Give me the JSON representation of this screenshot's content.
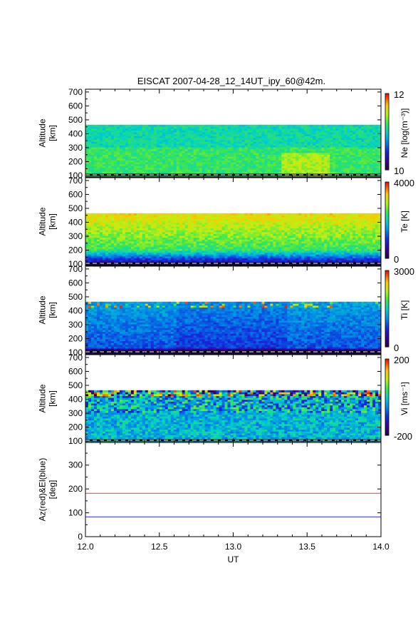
{
  "title": "EISCAT 2007-04-28_12_14UT_ipy_60@42m.",
  "xlabel": "UT",
  "x_ticks": [
    "12.0",
    "12.5",
    "13.0",
    "13.5",
    "14.0"
  ],
  "colors": {
    "azimuth_line": "#e8402a",
    "elevation_line": "#2a2ae0"
  },
  "chart_data": [
    {
      "type": "heatmap",
      "name": "ne-panel",
      "ylabel": "Altitude [km]",
      "y_ticks": [
        "100",
        "200",
        "300",
        "400",
        "500",
        "600",
        "700"
      ],
      "ylim": [
        90,
        720
      ],
      "xlim": [
        12.0,
        14.0
      ],
      "data_top_altitude": 465,
      "colorbar_label": "Ne [log(m⁻³)]",
      "colorbar_ticks": [
        "12",
        "10"
      ],
      "clim": [
        10,
        12
      ]
    },
    {
      "type": "heatmap",
      "name": "te-panel",
      "ylabel": "Altitude [km]",
      "y_ticks": [
        "100",
        "200",
        "300",
        "400",
        "500",
        "600",
        "700"
      ],
      "ylim": [
        90,
        720
      ],
      "xlim": [
        12.0,
        14.0
      ],
      "data_top_altitude": 465,
      "colorbar_label": "Te [K]",
      "colorbar_ticks": [
        "4000",
        "0"
      ],
      "clim": [
        0,
        4000
      ]
    },
    {
      "type": "heatmap",
      "name": "ti-panel",
      "ylabel": "Altitude [km]",
      "y_ticks": [
        "100",
        "200",
        "300",
        "400",
        "500",
        "600",
        "700"
      ],
      "ylim": [
        90,
        720
      ],
      "xlim": [
        12.0,
        14.0
      ],
      "data_top_altitude": 465,
      "colorbar_label": "Ti [K]",
      "colorbar_ticks": [
        "3000",
        "0"
      ],
      "clim": [
        0,
        3000
      ]
    },
    {
      "type": "heatmap",
      "name": "vi-panel",
      "ylabel": "Altitude [km]",
      "y_ticks": [
        "100",
        "200",
        "300",
        "400",
        "500",
        "600",
        "700"
      ],
      "ylim": [
        90,
        720
      ],
      "xlim": [
        12.0,
        14.0
      ],
      "data_top_altitude": 465,
      "colorbar_label": "Vi [ms⁻¹]",
      "colorbar_ticks": [
        "200",
        "-200"
      ],
      "clim": [
        -200,
        200
      ]
    },
    {
      "type": "line",
      "name": "az-el-panel",
      "ylabel": "Az(red)&El(blue) [deg]",
      "y_ticks": [
        "0",
        "100",
        "200",
        "300"
      ],
      "ylim": [
        0,
        395
      ],
      "xlim": [
        12.0,
        14.0
      ],
      "series": [
        {
          "name": "Az",
          "x": [
            12.0,
            14.0
          ],
          "values": [
            182,
            182
          ]
        },
        {
          "name": "El",
          "x": [
            12.0,
            14.0
          ],
          "values": [
            83,
            83
          ]
        }
      ]
    }
  ]
}
